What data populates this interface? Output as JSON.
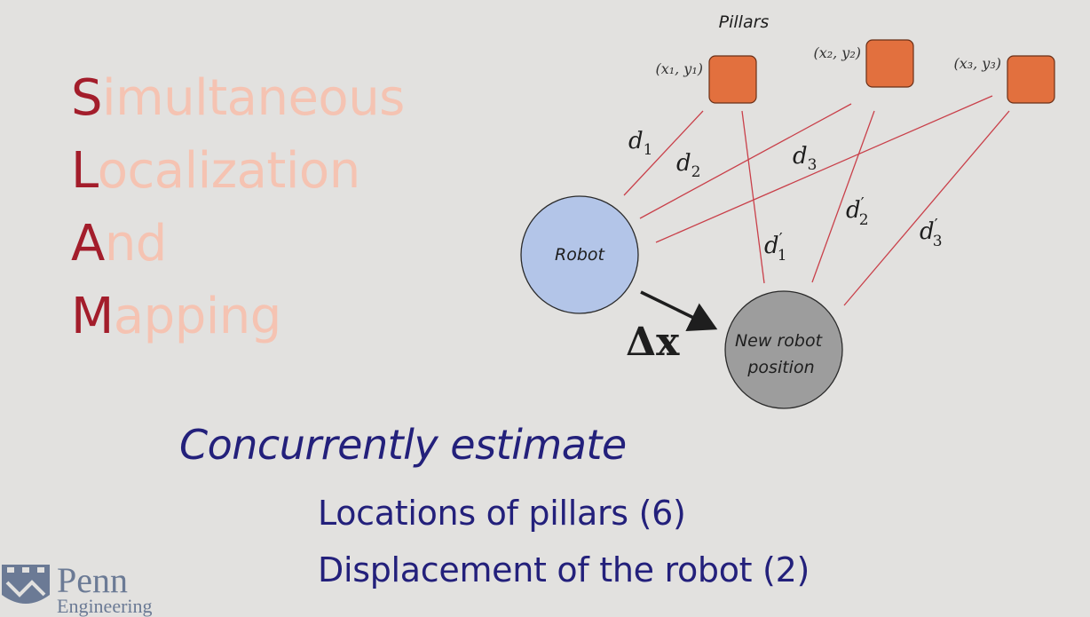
{
  "acronym": [
    {
      "letter": "S",
      "rest": "imultaneous"
    },
    {
      "letter": "L",
      "rest": "ocalization"
    },
    {
      "letter": "A",
      "rest": "nd"
    },
    {
      "letter": "M",
      "rest": "apping"
    }
  ],
  "diagram": {
    "pillars_title": "Pillars",
    "pillars": [
      {
        "label": "(x₁, y₁)"
      },
      {
        "label": "(x₂, y₂)"
      },
      {
        "label": "(x₃, y₃)"
      }
    ],
    "robot_label": "Robot",
    "new_robot_label": [
      "New robot",
      "position"
    ],
    "delta_label": "Δx",
    "distance_labels": {
      "d1": {
        "base": "d",
        "sub": "1",
        "prime": ""
      },
      "d2": {
        "base": "d",
        "sub": "2",
        "prime": ""
      },
      "d3": {
        "base": "d",
        "sub": "3",
        "prime": ""
      },
      "d1p": {
        "base": "d",
        "sub": "1",
        "prime": "′"
      },
      "d2p": {
        "base": "d",
        "sub": "2",
        "prime": "′"
      },
      "d3p": {
        "base": "d",
        "sub": "3",
        "prime": "′"
      }
    },
    "colors": {
      "pillar_fill": "#e2703e",
      "robot_fill": "#b3c5e8",
      "new_robot_fill": "#9d9d9d",
      "line_color": "#c9404a"
    }
  },
  "bullets": {
    "heading": "Concurrently estimate",
    "items": [
      "Locations of pillars (6)",
      "Displacement of the robot (2)"
    ]
  },
  "logo": {
    "name": "Penn",
    "sub": "Engineering"
  }
}
